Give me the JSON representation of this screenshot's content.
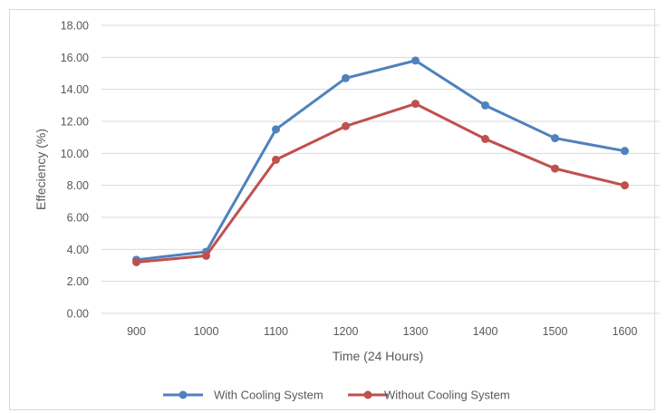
{
  "chart_data": {
    "type": "line",
    "title": "",
    "xlabel": "Time (24 Hours)",
    "ylabel": "Effeciency (%)",
    "categories": [
      "900",
      "1000",
      "1100",
      "1200",
      "1300",
      "1400",
      "1500",
      "1600"
    ],
    "ylim": [
      0,
      18
    ],
    "yticks": [
      "0.00",
      "2.00",
      "4.00",
      "6.00",
      "8.00",
      "10.00",
      "12.00",
      "14.00",
      "16.00",
      "18.00"
    ],
    "grid": true,
    "legend_position": "bottom",
    "series": [
      {
        "name": "With Cooling System",
        "color": "#4f81bd",
        "values": [
          3.35,
          3.85,
          11.5,
          14.7,
          15.8,
          13.0,
          10.95,
          10.15
        ]
      },
      {
        "name": "Without Cooling System",
        "color": "#c0504d",
        "values": [
          3.2,
          3.6,
          9.6,
          11.7,
          13.1,
          10.9,
          9.05,
          8.0
        ]
      }
    ]
  }
}
